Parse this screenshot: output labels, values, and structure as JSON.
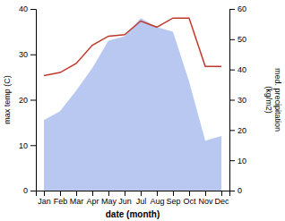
{
  "chart_data": {
    "type": "area",
    "xlabel": "date (month)",
    "ylabel": "max temp (C)",
    "y2label": "med. precipitation\n(kg/m2)",
    "categories": [
      "Jan",
      "Feb",
      "Mar",
      "Apr",
      "May",
      "Jun",
      "Jul",
      "Aug",
      "Sep",
      "Oct",
      "Nov",
      "Dec"
    ],
    "series": [
      {
        "type": "area",
        "color": "#b8c8f0",
        "values": [
          15.5,
          17.5,
          22,
          27,
          33,
          34,
          38,
          36,
          35,
          24,
          11,
          12
        ]
      },
      {
        "type": "line",
        "axis": "y2",
        "color": "#c0392b",
        "values": [
          38,
          39,
          42,
          48,
          51,
          51.5,
          56,
          54,
          57,
          57,
          41,
          41
        ]
      }
    ],
    "ylim": [
      0,
      40
    ],
    "yticks": [
      0,
      10,
      20,
      30,
      40
    ],
    "y2lim": [
      0,
      60
    ],
    "y2ticks": [
      0,
      10,
      20,
      30,
      40,
      50,
      60
    ],
    "grid": false
  }
}
